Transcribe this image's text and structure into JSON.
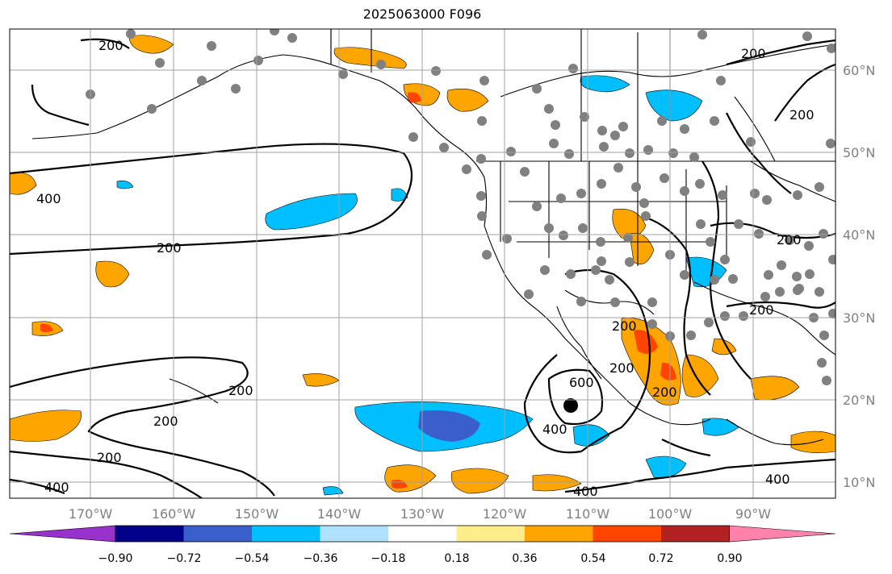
{
  "map": {
    "title": "2025063000 F096",
    "lon_labels": [
      "170°W",
      "160°W",
      "150°W",
      "140°W",
      "130°W",
      "120°W",
      "110°W",
      "100°W",
      "90°W"
    ],
    "lat_labels": [
      "60°N",
      "50°N",
      "40°N",
      "30°N",
      "20°N",
      "10°N"
    ],
    "contour_labels": [
      "200",
      "400",
      "600"
    ],
    "colorbar": {
      "ticks": [
        "−0.90",
        "−0.72",
        "−0.54",
        "−0.36",
        "−0.18",
        "0.18",
        "0.36",
        "0.54",
        "0.72",
        "0.90"
      ],
      "colors": [
        "#9932cc",
        "#00008b",
        "#3a5fcd",
        "#00bfff",
        "#b0e2ff",
        "#ffffff",
        "#ffec8b",
        "#ffa500",
        "#ff4500",
        "#b22222",
        "#ff82ab"
      ]
    },
    "styles": {
      "grid": "#a0a0a0",
      "tick_text": "#808080",
      "station_dot": "#808080"
    }
  }
}
